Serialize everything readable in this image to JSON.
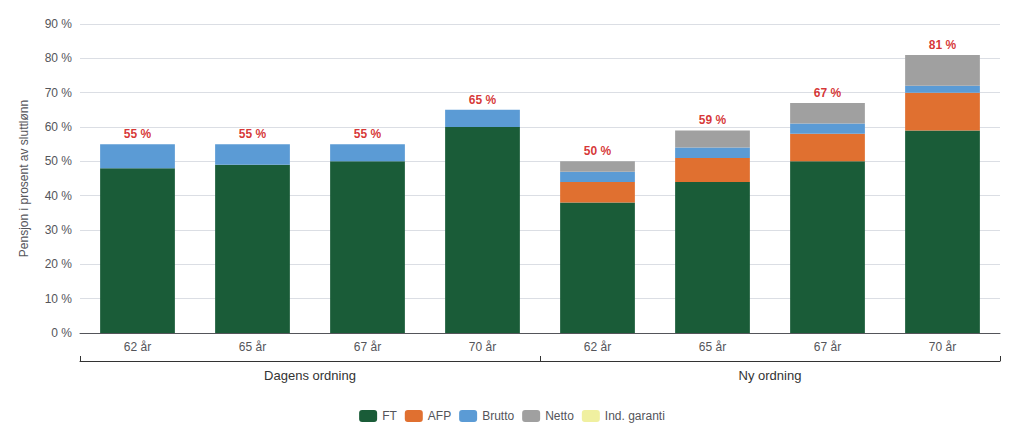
{
  "chart_data": {
    "type": "bar",
    "stacked": true,
    "ylabel": "Pensjon i prosent av sluttlønn",
    "categories": [
      "62 år",
      "65 år",
      "67 år",
      "70 år",
      "62 år",
      "65 år",
      "67 år",
      "70 år"
    ],
    "group_labels": [
      "Dagens ordning",
      "Ny ordning"
    ],
    "series": [
      {
        "name": "FT",
        "color": "#1a5c38",
        "values": [
          48,
          49,
          50,
          60,
          38,
          44,
          50,
          59
        ]
      },
      {
        "name": "AFP",
        "color": "#e07030",
        "values": [
          0,
          0,
          0,
          0,
          6,
          7,
          8,
          11
        ]
      },
      {
        "name": "Brutto",
        "color": "#5b9bd5",
        "values": [
          7,
          6,
          5,
          5,
          3,
          3,
          3,
          2
        ]
      },
      {
        "name": "Netto",
        "color": "#a0a0a0",
        "values": [
          0,
          0,
          0,
          0,
          3,
          5,
          6,
          9
        ]
      },
      {
        "name": "Ind. garanti",
        "color": "#f0f0a0",
        "values": [
          0,
          0,
          0,
          0,
          0,
          0,
          0,
          0
        ]
      }
    ],
    "totals": {
      "values": [
        55,
        55,
        55,
        65,
        50,
        59,
        67,
        81
      ],
      "value_labels": [
        "55 %",
        "55 %",
        "55 %",
        "65 %",
        "50 %",
        "59 %",
        "67 %",
        "81 %"
      ],
      "color": "#cc0000"
    },
    "ylim": [
      0,
      90
    ],
    "yticks": [
      {
        "value": 0,
        "label": "0 %"
      },
      {
        "value": 10,
        "label": "10 %"
      },
      {
        "value": 20,
        "label": "20 %"
      },
      {
        "value": 30,
        "label": "30 %"
      },
      {
        "value": 40,
        "label": "40 %"
      },
      {
        "value": 50,
        "label": "50 %"
      },
      {
        "value": 60,
        "label": "60 %"
      },
      {
        "value": 70,
        "label": "70 %"
      },
      {
        "value": 80,
        "label": "80 %"
      },
      {
        "value": 90,
        "label": "90 %"
      }
    ],
    "grid": true,
    "legend": "bottom"
  }
}
